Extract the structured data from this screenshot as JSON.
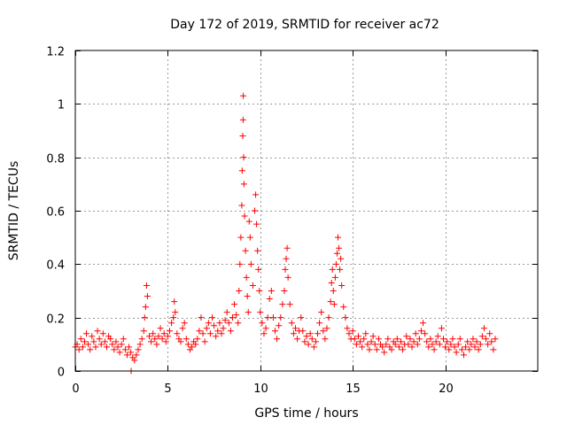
{
  "chart_data": {
    "type": "scatter",
    "title": "Day 172 of 2019, SRMTID for receiver ac72",
    "xlabel": "GPS time / hours",
    "ylabel": "SRMTID / TECUs",
    "xlim": [
      0,
      25
    ],
    "ylim": [
      0,
      1.2
    ],
    "xticks": [
      0,
      5,
      10,
      15,
      20
    ],
    "xtick_labels": [
      "0",
      "5",
      "10",
      "15",
      "20"
    ],
    "yticks": [
      0,
      0.2,
      0.4,
      0.6,
      0.8,
      1,
      1.2
    ],
    "ytick_labels": [
      "0",
      "0.2",
      "0.4",
      "0.6",
      "0.8",
      "1",
      "1.2"
    ],
    "grid": true,
    "marker": "plus",
    "color": "#ff0000",
    "series": [
      {
        "name": "SRMTID",
        "points": [
          [
            0.0,
            0.09
          ],
          [
            0.1,
            0.1
          ],
          [
            0.2,
            0.08
          ],
          [
            0.3,
            0.12
          ],
          [
            0.4,
            0.09
          ],
          [
            0.5,
            0.11
          ],
          [
            0.6,
            0.14
          ],
          [
            0.7,
            0.1
          ],
          [
            0.8,
            0.08
          ],
          [
            0.9,
            0.13
          ],
          [
            1.0,
            0.11
          ],
          [
            1.1,
            0.09
          ],
          [
            1.2,
            0.15
          ],
          [
            1.3,
            0.12
          ],
          [
            1.4,
            0.1
          ],
          [
            1.5,
            0.14
          ],
          [
            1.6,
            0.11
          ],
          [
            1.7,
            0.09
          ],
          [
            1.8,
            0.13
          ],
          [
            1.9,
            0.12
          ],
          [
            2.0,
            0.1
          ],
          [
            2.1,
            0.08
          ],
          [
            2.2,
            0.11
          ],
          [
            2.3,
            0.09
          ],
          [
            2.4,
            0.07
          ],
          [
            2.5,
            0.1
          ],
          [
            2.6,
            0.12
          ],
          [
            2.7,
            0.08
          ],
          [
            2.8,
            0.06
          ],
          [
            2.9,
            0.09
          ],
          [
            3.0,
            0.07
          ],
          [
            3.02,
            0.0
          ],
          [
            3.1,
            0.05
          ],
          [
            3.2,
            0.04
          ],
          [
            3.3,
            0.06
          ],
          [
            3.4,
            0.08
          ],
          [
            3.5,
            0.1
          ],
          [
            3.6,
            0.12
          ],
          [
            3.7,
            0.15
          ],
          [
            3.75,
            0.2
          ],
          [
            3.8,
            0.24
          ],
          [
            3.85,
            0.32
          ],
          [
            3.9,
            0.28
          ],
          [
            4.0,
            0.13
          ],
          [
            4.1,
            0.11
          ],
          [
            4.2,
            0.14
          ],
          [
            4.3,
            0.12
          ],
          [
            4.4,
            0.1
          ],
          [
            4.5,
            0.13
          ],
          [
            4.6,
            0.16
          ],
          [
            4.7,
            0.12
          ],
          [
            4.8,
            0.14
          ],
          [
            4.9,
            0.11
          ],
          [
            5.0,
            0.13
          ],
          [
            5.1,
            0.15
          ],
          [
            5.2,
            0.18
          ],
          [
            5.3,
            0.2
          ],
          [
            5.35,
            0.26
          ],
          [
            5.4,
            0.22
          ],
          [
            5.5,
            0.14
          ],
          [
            5.6,
            0.12
          ],
          [
            5.7,
            0.11
          ],
          [
            5.8,
            0.16
          ],
          [
            5.9,
            0.18
          ],
          [
            6.0,
            0.12
          ],
          [
            6.1,
            0.1
          ],
          [
            6.2,
            0.08
          ],
          [
            6.3,
            0.09
          ],
          [
            6.4,
            0.11
          ],
          [
            6.5,
            0.1
          ],
          [
            6.6,
            0.12
          ],
          [
            6.7,
            0.15
          ],
          [
            6.8,
            0.2
          ],
          [
            6.9,
            0.14
          ],
          [
            7.0,
            0.11
          ],
          [
            7.1,
            0.16
          ],
          [
            7.2,
            0.18
          ],
          [
            7.3,
            0.14
          ],
          [
            7.4,
            0.2
          ],
          [
            7.5,
            0.17
          ],
          [
            7.6,
            0.13
          ],
          [
            7.7,
            0.15
          ],
          [
            7.8,
            0.18
          ],
          [
            7.9,
            0.14
          ],
          [
            8.0,
            0.16
          ],
          [
            8.1,
            0.19
          ],
          [
            8.2,
            0.22
          ],
          [
            8.3,
            0.18
          ],
          [
            8.4,
            0.15
          ],
          [
            8.5,
            0.2
          ],
          [
            8.6,
            0.25
          ],
          [
            8.7,
            0.21
          ],
          [
            8.8,
            0.18
          ],
          [
            8.85,
            0.3
          ],
          [
            8.9,
            0.4
          ],
          [
            8.95,
            0.5
          ],
          [
            9.0,
            0.62
          ],
          [
            9.02,
            0.75
          ],
          [
            9.05,
            0.88
          ],
          [
            9.07,
            0.94
          ],
          [
            9.08,
            1.03
          ],
          [
            9.1,
            0.8
          ],
          [
            9.12,
            0.7
          ],
          [
            9.15,
            0.58
          ],
          [
            9.2,
            0.45
          ],
          [
            9.25,
            0.35
          ],
          [
            9.3,
            0.28
          ],
          [
            9.35,
            0.22
          ],
          [
            9.4,
            0.56
          ],
          [
            9.45,
            0.5
          ],
          [
            9.5,
            0.4
          ],
          [
            9.6,
            0.32
          ],
          [
            9.7,
            0.6
          ],
          [
            9.75,
            0.66
          ],
          [
            9.8,
            0.55
          ],
          [
            9.85,
            0.45
          ],
          [
            9.9,
            0.38
          ],
          [
            9.95,
            0.3
          ],
          [
            10.0,
            0.22
          ],
          [
            10.1,
            0.18
          ],
          [
            10.2,
            0.14
          ],
          [
            10.3,
            0.16
          ],
          [
            10.4,
            0.2
          ],
          [
            10.5,
            0.27
          ],
          [
            10.6,
            0.3
          ],
          [
            10.7,
            0.2
          ],
          [
            10.8,
            0.15
          ],
          [
            10.9,
            0.12
          ],
          [
            11.0,
            0.17
          ],
          [
            11.1,
            0.2
          ],
          [
            11.2,
            0.25
          ],
          [
            11.3,
            0.3
          ],
          [
            11.35,
            0.38
          ],
          [
            11.4,
            0.42
          ],
          [
            11.45,
            0.46
          ],
          [
            11.5,
            0.35
          ],
          [
            11.6,
            0.25
          ],
          [
            11.7,
            0.18
          ],
          [
            11.8,
            0.14
          ],
          [
            11.9,
            0.16
          ],
          [
            12.0,
            0.12
          ],
          [
            12.1,
            0.15
          ],
          [
            12.2,
            0.2
          ],
          [
            12.3,
            0.15
          ],
          [
            12.4,
            0.11
          ],
          [
            12.5,
            0.13
          ],
          [
            12.6,
            0.1
          ],
          [
            12.7,
            0.14
          ],
          [
            12.8,
            0.12
          ],
          [
            12.9,
            0.09
          ],
          [
            13.0,
            0.11
          ],
          [
            13.1,
            0.14
          ],
          [
            13.2,
            0.18
          ],
          [
            13.3,
            0.22
          ],
          [
            13.4,
            0.15
          ],
          [
            13.5,
            0.12
          ],
          [
            13.6,
            0.16
          ],
          [
            13.7,
            0.2
          ],
          [
            13.8,
            0.26
          ],
          [
            13.85,
            0.33
          ],
          [
            13.9,
            0.38
          ],
          [
            13.95,
            0.3
          ],
          [
            14.0,
            0.25
          ],
          [
            14.05,
            0.35
          ],
          [
            14.1,
            0.4
          ],
          [
            14.15,
            0.44
          ],
          [
            14.2,
            0.5
          ],
          [
            14.25,
            0.46
          ],
          [
            14.3,
            0.38
          ],
          [
            14.35,
            0.42
          ],
          [
            14.4,
            0.32
          ],
          [
            14.5,
            0.24
          ],
          [
            14.6,
            0.2
          ],
          [
            14.7,
            0.16
          ],
          [
            14.8,
            0.14
          ],
          [
            14.9,
            0.12
          ],
          [
            15.0,
            0.15
          ],
          [
            15.1,
            0.12
          ],
          [
            15.2,
            0.1
          ],
          [
            15.3,
            0.13
          ],
          [
            15.4,
            0.11
          ],
          [
            15.5,
            0.09
          ],
          [
            15.6,
            0.12
          ],
          [
            15.7,
            0.14
          ],
          [
            15.8,
            0.1
          ],
          [
            15.9,
            0.08
          ],
          [
            16.0,
            0.11
          ],
          [
            16.1,
            0.13
          ],
          [
            16.2,
            0.1
          ],
          [
            16.3,
            0.08
          ],
          [
            16.4,
            0.12
          ],
          [
            16.5,
            0.1
          ],
          [
            16.6,
            0.09
          ],
          [
            16.7,
            0.07
          ],
          [
            16.8,
            0.1
          ],
          [
            16.9,
            0.12
          ],
          [
            17.0,
            0.09
          ],
          [
            17.1,
            0.08
          ],
          [
            17.2,
            0.11
          ],
          [
            17.3,
            0.1
          ],
          [
            17.4,
            0.12
          ],
          [
            17.5,
            0.09
          ],
          [
            17.6,
            0.11
          ],
          [
            17.7,
            0.08
          ],
          [
            17.8,
            0.1
          ],
          [
            17.9,
            0.13
          ],
          [
            18.0,
            0.1
          ],
          [
            18.1,
            0.12
          ],
          [
            18.2,
            0.09
          ],
          [
            18.3,
            0.11
          ],
          [
            18.4,
            0.14
          ],
          [
            18.5,
            0.1
          ],
          [
            18.6,
            0.12
          ],
          [
            18.7,
            0.15
          ],
          [
            18.8,
            0.18
          ],
          [
            18.9,
            0.14
          ],
          [
            19.0,
            0.11
          ],
          [
            19.1,
            0.09
          ],
          [
            19.2,
            0.12
          ],
          [
            19.3,
            0.1
          ],
          [
            19.4,
            0.08
          ],
          [
            19.5,
            0.11
          ],
          [
            19.6,
            0.13
          ],
          [
            19.7,
            0.1
          ],
          [
            19.8,
            0.16
          ],
          [
            19.9,
            0.12
          ],
          [
            20.0,
            0.09
          ],
          [
            20.1,
            0.11
          ],
          [
            20.2,
            0.08
          ],
          [
            20.3,
            0.1
          ],
          [
            20.4,
            0.12
          ],
          [
            20.5,
            0.09
          ],
          [
            20.6,
            0.07
          ],
          [
            20.7,
            0.1
          ],
          [
            20.8,
            0.12
          ],
          [
            20.9,
            0.08
          ],
          [
            21.0,
            0.06
          ],
          [
            21.1,
            0.09
          ],
          [
            21.2,
            0.11
          ],
          [
            21.3,
            0.08
          ],
          [
            21.4,
            0.1
          ],
          [
            21.5,
            0.12
          ],
          [
            21.6,
            0.09
          ],
          [
            21.7,
            0.11
          ],
          [
            21.8,
            0.08
          ],
          [
            21.9,
            0.1
          ],
          [
            22.0,
            0.13
          ],
          [
            22.1,
            0.16
          ],
          [
            22.2,
            0.12
          ],
          [
            22.3,
            0.1
          ],
          [
            22.4,
            0.14
          ],
          [
            22.5,
            0.11
          ],
          [
            22.6,
            0.08
          ],
          [
            22.7,
            0.12
          ]
        ]
      }
    ]
  }
}
